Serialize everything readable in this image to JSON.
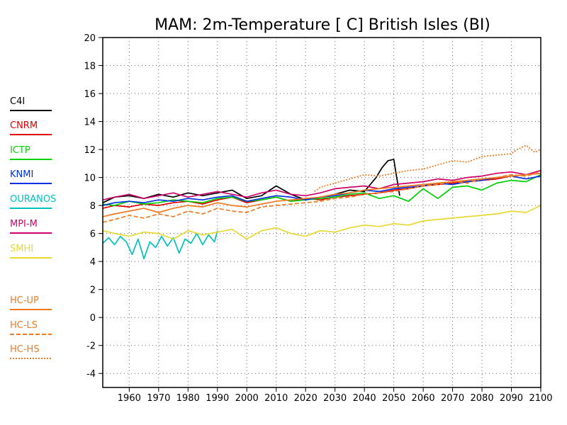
{
  "chart_data": {
    "type": "line",
    "title": "MAM: 2m-Temperature [  C] British Isles (BI)",
    "xlabel": "",
    "ylabel": "",
    "xlim": [
      1951,
      2100
    ],
    "ylim": [
      -5,
      20
    ],
    "x_ticks": [
      1960,
      1970,
      1980,
      1990,
      2000,
      2010,
      2020,
      2030,
      2040,
      2050,
      2060,
      2070,
      2080,
      2090,
      2100
    ],
    "y_ticks": [
      -4,
      -2,
      0,
      2,
      4,
      6,
      8,
      10,
      12,
      14,
      16,
      18,
      20
    ],
    "grid": true,
    "legend_position": "left",
    "series": [
      {
        "name": "C4I",
        "color": "#000000",
        "style": "solid",
        "x": [
          1951,
          1955,
          1960,
          1965,
          1970,
          1975,
          1980,
          1985,
          1990,
          1995,
          2000,
          2005,
          2010,
          2015,
          2020,
          2025,
          2030,
          2035,
          2040,
          2044,
          2046,
          2048,
          2050,
          2052
        ],
        "y": [
          8.2,
          8.6,
          8.7,
          8.5,
          8.8,
          8.6,
          8.9,
          8.7,
          8.9,
          9.1,
          8.5,
          8.7,
          9.4,
          8.8,
          8.4,
          8.6,
          8.8,
          9.1,
          9.0,
          10.0,
          10.7,
          11.2,
          11.3,
          8.7
        ]
      },
      {
        "name": "CNRM",
        "color": "#e00000",
        "style": "solid",
        "x": [
          1951,
          1955,
          1960,
          1965,
          1970,
          1975,
          1980,
          1985,
          1990,
          1995,
          2000,
          2005,
          2010,
          2015,
          2020,
          2025,
          2030,
          2035,
          2040,
          2045,
          2050,
          2055,
          2060,
          2065,
          2070,
          2075,
          2080,
          2085,
          2090,
          2095,
          2100
        ],
        "y": [
          7.8,
          8.0,
          7.9,
          8.1,
          8.0,
          8.2,
          8.3,
          8.1,
          8.4,
          8.6,
          8.2,
          8.4,
          8.6,
          8.3,
          8.5,
          8.4,
          8.6,
          8.7,
          8.8,
          8.9,
          9.1,
          9.2,
          9.4,
          9.5,
          9.6,
          9.7,
          9.8,
          9.9,
          10.1,
          10.2,
          10.3
        ]
      },
      {
        "name": "ICTP",
        "color": "#00d000",
        "style": "solid",
        "x": [
          1951,
          1955,
          1960,
          1965,
          1970,
          1975,
          1980,
          1985,
          1990,
          1995,
          2000,
          2005,
          2010,
          2015,
          2020,
          2025,
          2030,
          2035,
          2040,
          2045,
          2050,
          2055,
          2060,
          2065,
          2070,
          2075,
          2080,
          2085,
          2090,
          2095,
          2100
        ],
        "y": [
          8.1,
          8.0,
          8.3,
          8.1,
          8.2,
          8.4,
          8.3,
          8.2,
          8.5,
          8.6,
          8.3,
          8.4,
          8.6,
          8.3,
          8.4,
          8.5,
          8.6,
          8.8,
          8.9,
          8.5,
          8.7,
          8.3,
          9.2,
          8.5,
          9.3,
          9.4,
          9.1,
          9.6,
          9.8,
          9.7,
          10.2
        ]
      },
      {
        "name": "KNMI",
        "color": "#0030e0",
        "style": "solid",
        "x": [
          1951,
          1955,
          1960,
          1965,
          1970,
          1975,
          1980,
          1985,
          1990,
          1995,
          2000,
          2005,
          2010,
          2015,
          2020,
          2025,
          2030,
          2035,
          2040,
          2045,
          2050,
          2055,
          2060,
          2065,
          2070,
          2075,
          2080,
          2085,
          2090,
          2095,
          2100
        ],
        "y": [
          8.0,
          8.2,
          8.3,
          8.2,
          8.4,
          8.3,
          8.5,
          8.4,
          8.6,
          8.7,
          8.3,
          8.5,
          8.7,
          8.6,
          8.4,
          8.6,
          8.7,
          8.9,
          9.1,
          9.0,
          9.2,
          9.3,
          9.4,
          9.6,
          9.5,
          9.7,
          9.8,
          10.0,
          10.1,
          9.9,
          10.1
        ]
      },
      {
        "name": "OURANOS",
        "color": "#00c0c0",
        "style": "solid",
        "x": [
          1951,
          1953,
          1955,
          1957,
          1959,
          1961,
          1963,
          1965,
          1967,
          1969,
          1971,
          1973,
          1975,
          1977,
          1979,
          1981,
          1983,
          1985,
          1987,
          1989,
          1990
        ],
        "y": [
          5.3,
          5.7,
          5.2,
          5.8,
          5.4,
          4.5,
          5.6,
          4.2,
          5.4,
          5.0,
          5.8,
          5.1,
          5.7,
          4.6,
          5.6,
          5.3,
          6.0,
          5.2,
          5.9,
          5.4,
          6.2
        ]
      },
      {
        "name": "MPI-M",
        "color": "#d0006a",
        "style": "solid",
        "x": [
          1951,
          1955,
          1960,
          1965,
          1970,
          1975,
          1980,
          1985,
          1990,
          1995,
          2000,
          2005,
          2010,
          2015,
          2020,
          2025,
          2030,
          2035,
          2040,
          2045,
          2050,
          2055,
          2060,
          2065,
          2070,
          2075,
          2080,
          2085,
          2090,
          2095,
          2100
        ],
        "y": [
          8.4,
          8.6,
          8.8,
          8.5,
          8.7,
          8.9,
          8.6,
          8.8,
          9.0,
          8.8,
          8.6,
          8.9,
          9.1,
          8.8,
          8.7,
          8.9,
          9.2,
          9.3,
          9.4,
          9.2,
          9.5,
          9.6,
          9.7,
          9.9,
          9.8,
          10.0,
          10.1,
          10.3,
          10.4,
          10.2,
          10.5
        ]
      },
      {
        "name": "SMHI",
        "color": "#e8d830",
        "style": "solid",
        "x": [
          1951,
          1955,
          1960,
          1965,
          1970,
          1975,
          1980,
          1985,
          1990,
          1995,
          2000,
          2005,
          2010,
          2015,
          2020,
          2025,
          2030,
          2035,
          2040,
          2045,
          2050,
          2055,
          2060,
          2065,
          2070,
          2075,
          2080,
          2085,
          2090,
          2095,
          2100
        ],
        "y": [
          6.2,
          6.0,
          5.8,
          6.1,
          6.0,
          5.6,
          6.2,
          5.9,
          6.1,
          6.3,
          5.6,
          6.2,
          6.4,
          6.0,
          5.8,
          6.2,
          6.1,
          6.4,
          6.6,
          6.5,
          6.7,
          6.6,
          6.9,
          7.0,
          7.1,
          7.2,
          7.3,
          7.4,
          7.6,
          7.5,
          8.0
        ]
      },
      {
        "name": "HC-UP",
        "color": "#f07a20",
        "style": "solid",
        "x": [
          1951,
          1955,
          1960,
          1965,
          1970,
          1975,
          1980,
          1985,
          1990,
          1995,
          2000,
          2005,
          2010,
          2015,
          2020,
          2025,
          2030,
          2035,
          2040,
          2045,
          2050,
          2055,
          2060,
          2065,
          2070,
          2075,
          2080,
          2085,
          2090,
          2095,
          2100
        ],
        "y": [
          7.2,
          7.4,
          7.6,
          7.8,
          7.5,
          7.8,
          8.0,
          7.9,
          8.2,
          8.0,
          7.9,
          8.1,
          8.3,
          8.4,
          8.5,
          8.6,
          8.8,
          8.9,
          9.1,
          9.2,
          9.3,
          9.4,
          9.5,
          9.6,
          9.7,
          9.8,
          9.9,
          10.0,
          10.1,
          10.2,
          10.3
        ]
      },
      {
        "name": "HC-LS",
        "color": "#f07a20",
        "style": "dashed",
        "x": [
          1951,
          1955,
          1960,
          1965,
          1970,
          1975,
          1980,
          1985,
          1990,
          1995,
          2000,
          2005,
          2010,
          2015,
          2020,
          2025,
          2030,
          2035,
          2040,
          2045,
          2050,
          2055,
          2060,
          2065,
          2070,
          2075,
          2080,
          2085,
          2090,
          2095,
          2100
        ],
        "y": [
          6.8,
          7.0,
          7.3,
          7.1,
          7.4,
          7.2,
          7.6,
          7.4,
          7.8,
          7.6,
          7.5,
          7.9,
          8.0,
          8.1,
          8.2,
          8.3,
          8.5,
          8.6,
          8.8,
          8.9,
          9.0,
          9.2,
          9.4,
          9.5,
          9.7,
          9.6,
          9.9,
          10.0,
          10.2,
          10.1,
          10.4
        ]
      },
      {
        "name": "HC-HS",
        "color": "#f07a20",
        "style": "dotted",
        "x": [
          2023,
          2025,
          2030,
          2035,
          2040,
          2045,
          2050,
          2055,
          2060,
          2065,
          2070,
          2075,
          2080,
          2085,
          2090,
          2092,
          2095,
          2098,
          2100
        ],
        "y": [
          9.0,
          9.3,
          9.6,
          9.9,
          10.2,
          10.1,
          10.3,
          10.5,
          10.6,
          10.9,
          11.2,
          11.1,
          11.5,
          11.6,
          11.7,
          12.0,
          12.3,
          11.8,
          12.0
        ]
      }
    ]
  }
}
